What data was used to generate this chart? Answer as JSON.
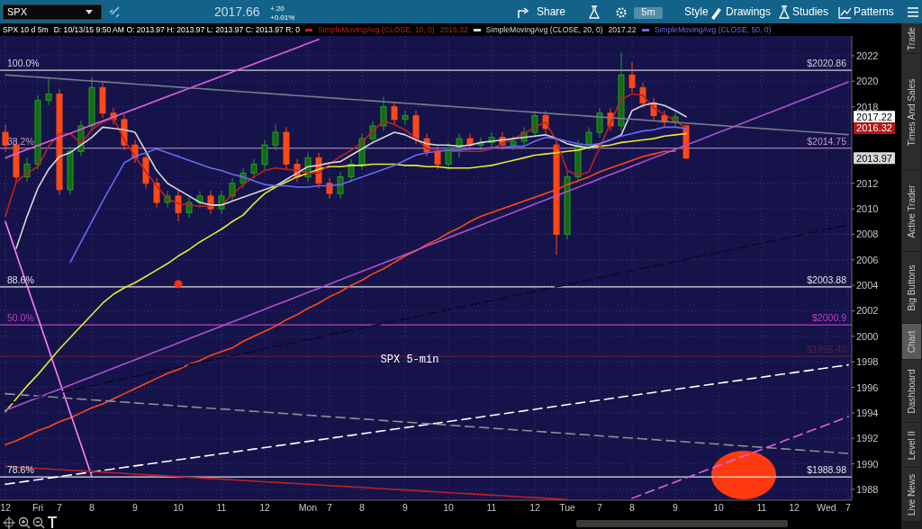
{
  "chart_data": {
    "type": "candlestick",
    "title": "SPX 10 d 5m",
    "subtitle": "D: 10/13/15 9:50 AM O: 2013.97 H: 2013.97 L: 2013.97 C: 2013.97 R: 0",
    "categories": [
      "12",
      null,
      null,
      "Fri",
      null,
      "7",
      null,
      null,
      "8",
      null,
      null,
      null,
      "9",
      null,
      null,
      null,
      "10",
      null,
      null,
      null,
      "11",
      null,
      null,
      null,
      "12",
      null,
      null,
      null,
      "Mon",
      null,
      "7",
      null,
      null,
      "8",
      null,
      null,
      null,
      "9",
      null,
      null,
      null,
      "10",
      null,
      null,
      null,
      "11",
      null,
      null,
      null,
      "12",
      null,
      null,
      "Tue",
      null,
      null,
      "7",
      null,
      null,
      "8",
      null,
      null,
      null,
      "9",
      null,
      null,
      null,
      "10",
      null,
      null,
      null,
      "11",
      null,
      null,
      "12",
      null,
      null,
      "Wed",
      null,
      "7"
    ],
    "ohlc": [
      [
        2016.0,
        2016.6,
        2014.5,
        2015.0
      ],
      [
        2015.0,
        2015.4,
        2012.0,
        2012.5
      ],
      [
        2012.5,
        2014.0,
        2012.1,
        2013.5
      ],
      [
        2013.5,
        2018.9,
        2013.1,
        2018.5
      ],
      [
        2018.5,
        2020.2,
        2018.1,
        2019.0
      ],
      [
        2019.0,
        2019.4,
        2011.1,
        2011.5
      ],
      [
        2011.5,
        2014.9,
        2011.1,
        2014.5
      ],
      [
        2014.5,
        2016.9,
        2014.1,
        2016.5
      ],
      [
        2016.5,
        2020.3,
        2016.1,
        2019.5
      ],
      [
        2019.5,
        2019.9,
        2017.1,
        2017.5
      ],
      [
        2017.5,
        2017.9,
        2016.6,
        2017.0
      ],
      [
        2017.0,
        2017.4,
        2014.6,
        2015.0
      ],
      [
        2015.0,
        2015.4,
        2013.6,
        2014.0
      ],
      [
        2014.0,
        2014.4,
        2011.6,
        2012.0
      ],
      [
        2012.0,
        2012.4,
        2010.1,
        2010.5
      ],
      [
        2010.5,
        2011.4,
        2010.1,
        2011.0
      ],
      [
        2011.0,
        2011.4,
        2009.0,
        2009.7
      ],
      [
        2009.7,
        2010.9,
        2009.3,
        2010.5
      ],
      [
        2010.5,
        2011.4,
        2010.1,
        2011.0
      ],
      [
        2011.0,
        2011.4,
        2009.6,
        2010.0
      ],
      [
        2010.0,
        2011.4,
        2009.6,
        2011.0
      ],
      [
        2011.0,
        2012.4,
        2010.6,
        2012.0
      ],
      [
        2012.0,
        2013.2,
        2011.6,
        2012.8
      ],
      [
        2012.8,
        2013.9,
        2012.4,
        2013.5
      ],
      [
        2013.5,
        2015.4,
        2013.1,
        2015.0
      ],
      [
        2015.0,
        2016.6,
        2014.6,
        2016.0
      ],
      [
        2016.0,
        2016.4,
        2013.1,
        2013.5
      ],
      [
        2013.5,
        2013.9,
        2012.1,
        2012.5
      ],
      [
        2012.5,
        2014.4,
        2012.1,
        2014.0
      ],
      [
        2014.0,
        2014.4,
        2011.6,
        2012.0
      ],
      [
        2012.0,
        2012.4,
        2010.8,
        2011.2
      ],
      [
        2011.2,
        2012.9,
        2010.8,
        2012.5
      ],
      [
        2012.5,
        2013.9,
        2012.1,
        2013.5
      ],
      [
        2013.5,
        2015.9,
        2013.1,
        2015.5
      ],
      [
        2015.5,
        2016.9,
        2015.1,
        2016.5
      ],
      [
        2016.5,
        2018.8,
        2016.1,
        2018.0
      ],
      [
        2018.0,
        2018.4,
        2016.6,
        2017.0
      ],
      [
        2017.0,
        2017.7,
        2016.6,
        2017.3
      ],
      [
        2017.3,
        2017.7,
        2015.1,
        2015.5
      ],
      [
        2015.5,
        2015.9,
        2014.1,
        2014.5
      ],
      [
        2014.5,
        2014.9,
        2013.1,
        2013.5
      ],
      [
        2013.5,
        2015.2,
        2013.1,
        2014.8
      ],
      [
        2014.8,
        2015.9,
        2014.0,
        2015.5
      ],
      [
        2015.5,
        2015.9,
        2014.6,
        2015.0
      ],
      [
        2015.0,
        2015.6,
        2014.6,
        2015.2
      ],
      [
        2015.2,
        2016.0,
        2014.8,
        2015.6
      ],
      [
        2015.6,
        2016.0,
        2014.6,
        2015.0
      ],
      [
        2015.0,
        2015.7,
        2014.6,
        2015.3
      ],
      [
        2015.3,
        2016.4,
        2014.9,
        2016.0
      ],
      [
        2016.0,
        2017.7,
        2015.6,
        2017.3
      ],
      [
        2017.3,
        2017.7,
        2015.9,
        2016.3
      ],
      [
        2015.0,
        2015.2,
        2006.4,
        2008.0
      ],
      [
        2008.0,
        2012.9,
        2007.6,
        2012.5
      ],
      [
        2012.5,
        2015.4,
        2012.1,
        2015.0
      ],
      [
        2015.0,
        2016.4,
        2014.6,
        2016.0
      ],
      [
        2016.0,
        2017.9,
        2015.6,
        2017.5
      ],
      [
        2017.5,
        2017.9,
        2016.1,
        2016.5
      ],
      [
        2016.5,
        2022.3,
        2016.1,
        2020.5
      ],
      [
        2020.5,
        2021.5,
        2019.1,
        2019.5
      ],
      [
        2019.5,
        2019.9,
        2017.9,
        2018.3
      ],
      [
        2018.3,
        2018.7,
        2016.9,
        2017.3
      ],
      [
        2017.3,
        2017.7,
        2016.4,
        2016.8
      ],
      [
        2016.8,
        2017.6,
        2016.4,
        2017.2
      ],
      [
        2016.5,
        2016.6,
        2013.9,
        2013.97
      ],
      null,
      null,
      null,
      null,
      null,
      null,
      null,
      null,
      null,
      null,
      null,
      null,
      null,
      null,
      null
    ],
    "series": [
      {
        "type": "line",
        "color": "#e8e830",
        "values": [
          1994.1,
          1995.1,
          1996.1,
          1997.0,
          1998.0,
          1999.0,
          1999.9,
          2000.8,
          2001.7,
          2002.6,
          2003.3,
          2003.8,
          2004.2,
          2004.7,
          2005.2,
          2005.7,
          2006.3,
          2006.8,
          2007.4,
          2007.9,
          2008.4,
          2009.0,
          2009.5,
          2010.4,
          2011.2,
          2011.7,
          2012.1,
          2012.5,
          2012.8,
          2013.1,
          2013.3,
          2013.3,
          2013.4,
          2013.4,
          2013.5,
          2013.5,
          2013.5,
          2013.4,
          2013.4,
          2013.3,
          2013.3,
          2013.2,
          2013.2,
          2013.2,
          2013.3,
          2013.4,
          2013.6,
          2013.8,
          2014.0,
          2014.2,
          2014.3,
          2014.4,
          2014.5,
          2014.6,
          2014.8,
          2014.9,
          2015.0,
          2015.2,
          2015.3,
          2015.4,
          2015.5,
          2015.7,
          2015.8,
          2015.9,
          null,
          null,
          null,
          null,
          null,
          null,
          null,
          null,
          null,
          null,
          null,
          null,
          null,
          null,
          null
        ]
      },
      {
        "type": "line",
        "color": "#ff4818",
        "values": [
          1991.5,
          1991.8,
          1992.2,
          1992.6,
          1992.9,
          1993.3,
          1993.6,
          1994.0,
          1994.4,
          1994.7,
          1995.1,
          1995.5,
          1995.9,
          1996.3,
          1996.7,
          1997.1,
          1997.4,
          1997.8,
          1998.1,
          1998.5,
          1998.8,
          1999.1,
          1999.6,
          2000.0,
          2000.4,
          2000.8,
          2001.3,
          2001.7,
          2002.2,
          2002.6,
          2003.1,
          2003.5,
          2004.0,
          2004.4,
          2004.9,
          2005.3,
          2005.8,
          2006.3,
          2006.7,
          2007.2,
          2007.6,
          2008.1,
          2008.5,
          2009.0,
          2009.4,
          2009.7,
          2010.0,
          2010.3,
          2010.6,
          2010.9,
          2011.2,
          2011.5,
          2011.9,
          2012.2,
          2012.5,
          2012.9,
          2013.2,
          2013.5,
          2013.8,
          2014.1,
          2014.3,
          2014.5,
          2014.5,
          null,
          null,
          null,
          null,
          null,
          null,
          null,
          null,
          null,
          null,
          null,
          null,
          null,
          null,
          null,
          null
        ]
      },
      {
        "type": "line",
        "name": "SimpleMovingAvg (CLOSE, 10, 0)",
        "color": "#c02020",
        "values": [
          2009.4,
          2012.1,
          2012.8,
          2013.3,
          2014.9,
          2015.9,
          2015.9,
          2015.1,
          2016.2,
          2016.8,
          2017.1,
          2015.4,
          2014.1,
          2012.9,
          2011.8,
          2010.8,
          2010.4,
          2010.3,
          2010.2,
          2010.2,
          2010.3,
          2011.1,
          2011.9,
          2012.5,
          2013.0,
          2013.2,
          2013.1,
          2013.0,
          2012.8,
          2012.8,
          2013.5,
          2014.1,
          2014.6,
          2015.2,
          2016.1,
          2016.9,
          2016.6,
          2016.2,
          2015.5,
          2014.7,
          2014.6,
          2014.5,
          2014.5,
          2014.5,
          2014.5,
          2014.7,
          2015.1,
          2015.5,
          2015.9,
          2016.4,
          2016.8,
          2015.3,
          2013.0,
          2012.6,
          2012.9,
          2014.8,
          2016.7,
          2018.6,
          2019.0,
          2018.9,
          2017.9,
          2017.4,
          2016.9,
          2016.32,
          null,
          null,
          null,
          null,
          null,
          null,
          null,
          null,
          null,
          null,
          null,
          null,
          null,
          null,
          null
        ]
      },
      {
        "type": "line",
        "name": "SimpleMovingAvg (CLOSE, 20, 0)",
        "color": "#d8d8d8",
        "values": [
          null,
          2006.9,
          2009.4,
          2011.6,
          2013.1,
          2014.1,
          2014.4,
          2015.0,
          2015.6,
          2016.4,
          2016.3,
          2016.2,
          2016.0,
          2014.5,
          2013.0,
          2012.0,
          2011.5,
          2011.0,
          2010.5,
          2010.3,
          2010.3,
          2010.6,
          2010.9,
          2011.2,
          2011.5,
          2011.8,
          2012.3,
          2012.8,
          2013.3,
          2013.4,
          2013.6,
          2013.7,
          2014.2,
          2014.7,
          2015.2,
          2015.6,
          2016.0,
          2015.8,
          2015.4,
          2015.1,
          2015.0,
          2015.0,
          2014.9,
          2015.0,
          2015.2,
          2015.3,
          2015.4,
          2015.5,
          2015.6,
          2015.7,
          2015.8,
          2015.5,
          2015.1,
          2014.9,
          2014.8,
          2015.1,
          2015.4,
          2015.8,
          2017.7,
          2018.1,
          2018.3,
          2018.1,
          2017.7,
          2017.22,
          null,
          null,
          null,
          null,
          null,
          null,
          null,
          null,
          null,
          null,
          null,
          null,
          null,
          null,
          null
        ]
      },
      {
        "type": "line",
        "name": "SimpleMovingAvg (CLOSE, 50, 0)",
        "color": "#6a6af2",
        "values": [
          null,
          null,
          null,
          null,
          null,
          null,
          2005.8,
          2007.4,
          2009.0,
          2010.6,
          2012.1,
          2013.6,
          2014.1,
          2014.4,
          2014.7,
          2014.4,
          2014.1,
          2013.8,
          2013.5,
          2013.2,
          2013.0,
          2012.7,
          2012.5,
          2012.2,
          2011.9,
          2011.8,
          2011.8,
          2011.7,
          2011.7,
          2011.8,
          2011.8,
          2011.9,
          2012.2,
          2012.5,
          2012.8,
          2013.1,
          2013.4,
          2013.8,
          2014.2,
          2014.4,
          2014.5,
          2014.6,
          2014.6,
          2014.7,
          2014.7,
          2014.8,
          2014.8,
          2014.9,
          2014.9,
          2015.3,
          2015.6,
          2015.5,
          2015.3,
          2015.1,
          2015.0,
          2015.1,
          2015.4,
          2015.7,
          2015.9,
          2016.1,
          2016.2,
          2016.4,
          2016.4,
          2016.3,
          null,
          null,
          null,
          null,
          null,
          null,
          null,
          null,
          null,
          null,
          null,
          null,
          null,
          null,
          null
        ]
      },
      {
        "type": "line",
        "color": "#e060e0",
        "values": [
          2014.0,
          2014.32,
          2014.64,
          2014.96,
          2015.28,
          2015.6,
          2015.92,
          2016.24,
          2016.56,
          2016.88,
          2017.2,
          2017.52,
          2017.84,
          2018.16,
          2018.48,
          2018.8,
          2019.12,
          2019.44,
          2019.76,
          2020.08,
          2020.4,
          2020.72,
          2021.04,
          2021.36,
          2021.68,
          2022.0,
          2022.32,
          2022.64,
          2022.96,
          2023.28,
          null,
          null,
          null,
          null,
          null,
          null,
          null,
          null,
          null,
          null,
          null,
          null,
          null,
          null,
          null,
          null,
          null,
          null,
          null,
          null,
          null,
          null,
          null,
          null,
          null,
          null,
          null,
          null,
          null,
          null,
          null,
          null,
          null,
          null,
          null,
          null,
          null,
          null,
          null,
          null,
          null,
          null,
          null,
          null,
          null,
          null,
          null,
          null,
          null
        ]
      },
      {
        "type": "line",
        "color": "#ff80ff",
        "values": [
          2009.0,
          2006.5,
          2004.0,
          2001.5,
          1999.0,
          1996.5,
          1994.0,
          1991.5,
          1989.0,
          null,
          null,
          null,
          null,
          null,
          null,
          null,
          null,
          null,
          null,
          null,
          null,
          null,
          null,
          null,
          null,
          null,
          null,
          null,
          null,
          null,
          null,
          null,
          null,
          null,
          null,
          null,
          null,
          null,
          null,
          null,
          null,
          null,
          null,
          null,
          null,
          null,
          null,
          null,
          null,
          null,
          null,
          null,
          null,
          null,
          null,
          null,
          null,
          null,
          null,
          null,
          null,
          null,
          null,
          null,
          null,
          null,
          null,
          null,
          null,
          null,
          null,
          null,
          null,
          null,
          null,
          null,
          null,
          null,
          null
        ]
      },
      {
        "type": "line",
        "color": "#7a7a8c",
        "values": [
          2020.5,
          2020.44,
          2020.38,
          2020.32,
          2020.26,
          2020.2,
          2020.14,
          2020.08,
          2020.02,
          2019.96,
          2019.9,
          2019.84,
          2019.78,
          2019.72,
          2019.66,
          2019.6,
          2019.54,
          2019.48,
          2019.42,
          2019.36,
          2019.3,
          2019.24,
          2019.18,
          2019.12,
          2019.06,
          2019.0,
          2018.94,
          2018.88,
          2018.82,
          2018.76,
          2018.7,
          2018.64,
          2018.58,
          2018.52,
          2018.46,
          2018.4,
          2018.34,
          2018.28,
          2018.22,
          2018.16,
          2018.1,
          2018.04,
          2017.98,
          2017.92,
          2017.86,
          2017.8,
          2017.74,
          2017.68,
          2017.62,
          2017.56,
          2017.5,
          2017.44,
          2017.38,
          2017.32,
          2017.26,
          2017.2,
          2017.14,
          2017.08,
          2017.02,
          2016.96,
          2016.9,
          2016.84,
          2016.78,
          2016.72,
          2016.66,
          2016.6,
          2016.54,
          2016.48,
          2016.42,
          2016.36,
          2016.3,
          2016.24,
          2016.18,
          2016.12,
          2016.06,
          2016.0,
          2015.94,
          2015.88,
          2015.82
        ]
      },
      {
        "type": "line",
        "color": "#b050d0",
        "values": [
          1994.2,
          1994.53,
          1994.86,
          1995.19,
          1995.52,
          1995.85,
          1996.18,
          1996.51,
          1996.84,
          1997.17,
          1997.5,
          1997.83,
          1998.16,
          1998.49,
          1998.82,
          1999.15,
          1999.48,
          1999.81,
          2000.14,
          2000.47,
          2000.8,
          2001.13,
          2001.46,
          2001.79,
          2002.12,
          2002.45,
          2002.78,
          2003.11,
          2003.44,
          2003.77,
          2004.1,
          2004.43,
          2004.76,
          2005.09,
          2005.42,
          2005.75,
          2006.08,
          2006.41,
          2006.74,
          2007.07,
          2007.4,
          2007.73,
          2008.06,
          2008.39,
          2008.72,
          2009.05,
          2009.38,
          2009.71,
          2010.04,
          2010.37,
          2010.7,
          2011.03,
          2011.36,
          2011.69,
          2012.02,
          2012.35,
          2012.68,
          2013.01,
          2013.34,
          2013.67,
          2014.0,
          2014.33,
          2014.66,
          2014.99,
          2015.32,
          2015.65,
          2015.98,
          2016.31,
          2016.64,
          2016.97,
          2017.3,
          2017.63,
          2017.96,
          2018.29,
          2018.62,
          2018.95,
          2019.28,
          2019.61,
          2019.94
        ]
      },
      {
        "type": "line",
        "color": "#ffffff",
        "line_style": "dashed",
        "values": [
          1988.4,
          1988.52,
          1988.64,
          1988.76,
          1988.88,
          1989.0,
          1989.12,
          1989.24,
          1989.36,
          1989.48,
          1989.6,
          1989.72,
          1989.84,
          1989.96,
          1990.08,
          1990.2,
          1990.32,
          1990.44,
          1990.56,
          1990.68,
          1990.8,
          1990.92,
          1991.04,
          1991.16,
          1991.28,
          1991.4,
          1991.52,
          1991.64,
          1991.76,
          1991.88,
          1992.0,
          1992.12,
          1992.24,
          1992.36,
          1992.48,
          1992.6,
          1992.72,
          1992.84,
          1992.96,
          1993.08,
          1993.2,
          1993.32,
          1993.44,
          1993.56,
          1993.68,
          1993.8,
          1993.92,
          1994.04,
          1994.16,
          1994.28,
          1994.4,
          1994.52,
          1994.64,
          1994.76,
          1994.88,
          1995.0,
          1995.12,
          1995.24,
          1995.36,
          1995.48,
          1995.6,
          1995.72,
          1995.84,
          1995.96,
          1996.08,
          1996.2,
          1996.32,
          1996.44,
          1996.56,
          1996.68,
          1996.8,
          1996.92,
          1997.04,
          1997.16,
          1997.28,
          1997.4,
          1997.52,
          1997.64,
          1997.76
        ]
      },
      {
        "type": "line",
        "color": "#909090",
        "line_style": "dashed",
        "values": [
          1995.5,
          1995.44,
          1995.38,
          1995.32,
          1995.26,
          1995.2,
          1995.14,
          1995.08,
          1995.02,
          1994.96,
          1994.9,
          1994.84,
          1994.78,
          1994.72,
          1994.66,
          1994.6,
          1994.54,
          1994.48,
          1994.42,
          1994.36,
          1994.3,
          1994.24,
          1994.18,
          1994.12,
          1994.06,
          1994.0,
          1993.94,
          1993.88,
          1993.82,
          1993.76,
          1993.7,
          1993.64,
          1993.58,
          1993.52,
          1993.46,
          1993.4,
          1993.34,
          1993.28,
          1993.22,
          1993.16,
          1993.1,
          1993.04,
          1992.98,
          1992.92,
          1992.86,
          1992.8,
          1992.74,
          1992.68,
          1992.62,
          1992.56,
          1992.5,
          1992.44,
          1992.38,
          1992.32,
          1992.26,
          1992.2,
          1992.14,
          1992.08,
          1992.02,
          1991.96,
          1991.9,
          1991.84,
          1991.78,
          1991.72,
          1991.66,
          1991.6,
          1991.54,
          1991.48,
          1991.42,
          1991.36,
          1991.3,
          1991.24,
          1991.18,
          1991.12,
          1991.06,
          1991.0,
          1990.94,
          1990.88,
          1990.82
        ]
      },
      {
        "type": "line",
        "color": "#e060e0",
        "line_style": "dashed",
        "values": [
          null,
          null,
          null,
          null,
          null,
          null,
          null,
          null,
          null,
          null,
          null,
          null,
          null,
          null,
          null,
          null,
          null,
          null,
          null,
          null,
          null,
          null,
          null,
          null,
          null,
          null,
          null,
          null,
          null,
          null,
          null,
          null,
          null,
          null,
          null,
          null,
          null,
          null,
          null,
          null,
          null,
          null,
          null,
          null,
          null,
          null,
          null,
          null,
          null,
          null,
          null,
          null,
          null,
          null,
          null,
          null,
          null,
          null,
          1987.3,
          1987.62,
          1987.94,
          1988.26,
          1988.58,
          1988.9,
          1989.22,
          1989.54,
          1989.86,
          1990.18,
          1990.5,
          1990.82,
          1991.14,
          1991.46,
          1991.78,
          1992.1,
          1992.42,
          1992.74,
          1993.06,
          1993.38,
          1993.7
        ]
      },
      {
        "type": "line",
        "color": "#0a0a22",
        "line_style": "dashed",
        "values": [
          1994.7,
          1994.88,
          1995.06,
          1995.24,
          1995.42,
          1995.6,
          1995.78,
          1995.96,
          1996.14,
          1996.32,
          1996.5,
          1996.68,
          1996.86,
          1997.04,
          1997.22,
          1997.4,
          1997.58,
          1997.76,
          1997.94,
          1998.12,
          1998.3,
          1998.48,
          1998.66,
          1998.84,
          1999.02,
          1999.2,
          1999.38,
          1999.56,
          1999.74,
          1999.92,
          2000.1,
          2000.28,
          2000.46,
          2000.64,
          2000.82,
          2001.0,
          2001.18,
          2001.36,
          2001.54,
          2001.72,
          2001.9,
          2002.08,
          2002.26,
          2002.44,
          2002.62,
          2002.8,
          2002.98,
          2003.16,
          2003.34,
          2003.52,
          2003.7,
          2003.88,
          2004.06,
          2004.24,
          2004.42,
          2004.6,
          2004.78,
          2004.96,
          2005.14,
          2005.32,
          2005.5,
          2005.68,
          2005.86,
          2006.04,
          2006.22,
          2006.4,
          2006.58,
          2006.76,
          2006.94,
          2007.12,
          2007.3,
          2007.48,
          2007.66,
          2007.84,
          2008.02,
          2008.2,
          2008.38,
          2008.56,
          2008.74
        ]
      },
      {
        "type": "line",
        "color": "#c02020",
        "values": [
          1989.8,
          1989.75,
          1989.7,
          1989.65,
          1989.6,
          1989.55,
          1989.5,
          1989.45,
          1989.4,
          1989.35,
          1989.3,
          1989.25,
          1989.2,
          1989.15,
          1989.1,
          1989.05,
          1989.0,
          1988.95,
          1988.9,
          1988.85,
          1988.8,
          1988.75,
          1988.7,
          1988.65,
          1988.6,
          1988.55,
          1988.5,
          1988.45,
          1988.4,
          1988.35,
          1988.3,
          1988.25,
          1988.2,
          1988.15,
          1988.1,
          1988.05,
          1988.0,
          1987.95,
          1987.9,
          1987.85,
          1987.8,
          1987.75,
          1987.7,
          1987.65,
          1987.6,
          1987.55,
          1987.5,
          1987.45,
          1987.4,
          1987.35,
          1987.3,
          1987.25,
          1987.2,
          null,
          null,
          null,
          null,
          null,
          null,
          null,
          null,
          null,
          null,
          null,
          null,
          null,
          null,
          null,
          null,
          null,
          null,
          null,
          null,
          null,
          null,
          null,
          null,
          null,
          null
        ]
      },
      {
        "type": "scatter",
        "color": "#ff3010",
        "marker": "circle",
        "values": [
          null,
          null,
          null,
          null,
          null,
          null,
          null,
          null,
          null,
          null,
          null,
          null,
          null,
          null,
          null,
          null,
          2004.1,
          null,
          null,
          null,
          null,
          null,
          null,
          null,
          null,
          null,
          null,
          null,
          null,
          null,
          null,
          null,
          null,
          null,
          null,
          null,
          null,
          null,
          null,
          null,
          null,
          null,
          null,
          null,
          null,
          null,
          null,
          null,
          null,
          null,
          null,
          null,
          null,
          null,
          null,
          null,
          null,
          null,
          null,
          null,
          null,
          null,
          null,
          null,
          null,
          null,
          null,
          null,
          null,
          null,
          null,
          null,
          null,
          null,
          null,
          null,
          null,
          null,
          null
        ]
      }
    ],
    "ref_lines": [
      {
        "axis": "y",
        "value": 2020.86,
        "label": "$2020.86",
        "color": "#d0d0d8"
      },
      {
        "axis": "y",
        "value": 2014.75,
        "label": "$2014.75",
        "color": "#c898c8"
      },
      {
        "axis": "y",
        "value": 2003.88,
        "label": "$2003.88",
        "color": "#e0e0e0"
      },
      {
        "axis": "y",
        "value": 2000.9,
        "label": "$2000.9",
        "color": "#c040c0"
      },
      {
        "axis": "y",
        "value": 1998.43,
        "label": "$1998.43",
        "color": "#5a2040"
      },
      {
        "axis": "y",
        "value": 1988.98,
        "label": "$1988.98",
        "color": "#e0e0e0"
      }
    ],
    "annotations": [
      "SPX",
      "2017.66",
      "+.20",
      "+0.01%",
      "Share",
      "5m",
      "Style",
      "Drawings",
      "Studies",
      "Patterns",
      "2016.32",
      "2017.22",
      "Trade",
      "Times And Sales",
      "Active Trader",
      "Big Buttons",
      "Chart",
      "Dashboard",
      "Level II",
      "Live News",
      "SPX 5-min",
      "2017.22",
      "2016.32",
      "2013.97",
      "100.0%",
      "38.2%",
      "88.6%",
      "50.0%",
      "78.6%"
    ],
    "ylim": [
      1987.15,
      2023.55
    ],
    "yticks": [
      1988,
      1990,
      1992,
      1994,
      1996,
      1998,
      2000,
      2002,
      2004,
      2006,
      2008,
      2010,
      2012,
      2018,
      2020,
      2022
    ],
    "grid": true,
    "legend": "top"
  }
}
